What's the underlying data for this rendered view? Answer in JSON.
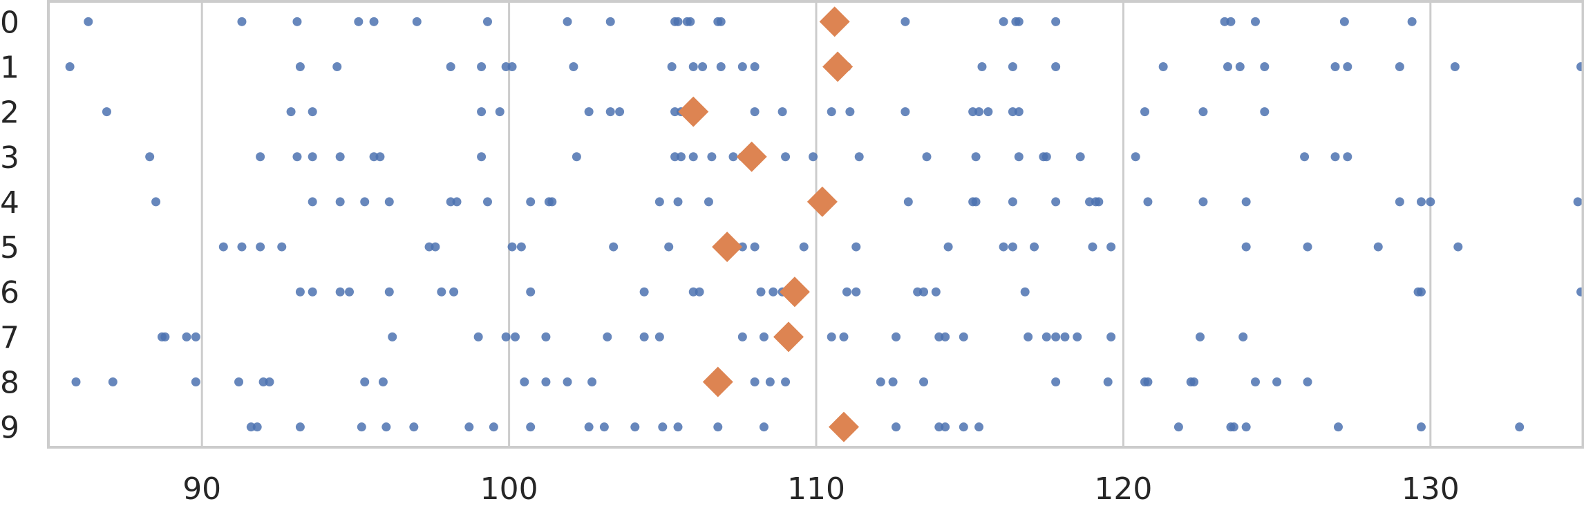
{
  "chart_data": {
    "type": "scatter",
    "title": "",
    "xlabel": "",
    "ylabel": "",
    "xlim": [
      85,
      135
    ],
    "ylim": [
      -0.45,
      9.45
    ],
    "x_ticks": [
      90,
      100,
      110,
      120,
      130
    ],
    "y_ticks": [
      0,
      1,
      2,
      3,
      4,
      5,
      6,
      7,
      8,
      9
    ],
    "grid": "vertical",
    "categories": [
      "0",
      "1",
      "2",
      "3",
      "4",
      "5",
      "6",
      "7",
      "8",
      "9"
    ],
    "colors": {
      "points": "#4c72b0",
      "means": "#dd8452",
      "grid": "#cccccc",
      "frame": "#cccccc"
    },
    "series": [
      {
        "points": [
          [
            0,
            86.3
          ],
          [
            0,
            91.3
          ],
          [
            0,
            93.1
          ],
          [
            0,
            95.1
          ],
          [
            0,
            95.6
          ],
          [
            0,
            97.0
          ],
          [
            0,
            99.3
          ],
          [
            0,
            101.9
          ],
          [
            0,
            103.3
          ],
          [
            0,
            105.4
          ],
          [
            0,
            105.5
          ],
          [
            0,
            105.8
          ],
          [
            0,
            105.9
          ],
          [
            0,
            106.8
          ],
          [
            0,
            106.9
          ],
          [
            0,
            112.9
          ],
          [
            0,
            116.1
          ],
          [
            0,
            116.5
          ],
          [
            0,
            116.6
          ],
          [
            0,
            117.8
          ],
          [
            0,
            123.3
          ],
          [
            0,
            123.5
          ],
          [
            0,
            124.3
          ],
          [
            0,
            127.2
          ],
          [
            0,
            129.4
          ],
          [
            1,
            85.7
          ],
          [
            1,
            93.2
          ],
          [
            1,
            94.4
          ],
          [
            1,
            98.1
          ],
          [
            1,
            99.1
          ],
          [
            1,
            99.9
          ],
          [
            1,
            100.1
          ],
          [
            1,
            102.1
          ],
          [
            1,
            105.3
          ],
          [
            1,
            106.0
          ],
          [
            1,
            106.3
          ],
          [
            1,
            106.9
          ],
          [
            1,
            107.6
          ],
          [
            1,
            108.0
          ],
          [
            1,
            111.0
          ],
          [
            1,
            115.4
          ],
          [
            1,
            116.4
          ],
          [
            1,
            117.8
          ],
          [
            1,
            121.3
          ],
          [
            1,
            123.4
          ],
          [
            1,
            123.8
          ],
          [
            1,
            124.6
          ],
          [
            1,
            126.9
          ],
          [
            1,
            127.3
          ],
          [
            1,
            129.0
          ],
          [
            1,
            130.8
          ],
          [
            1,
            134.9
          ],
          [
            2,
            86.9
          ],
          [
            2,
            92.9
          ],
          [
            2,
            93.6
          ],
          [
            2,
            99.1
          ],
          [
            2,
            99.7
          ],
          [
            2,
            102.6
          ],
          [
            2,
            103.3
          ],
          [
            2,
            103.6
          ],
          [
            2,
            105.4
          ],
          [
            2,
            105.6
          ],
          [
            2,
            108.0
          ],
          [
            2,
            108.9
          ],
          [
            2,
            110.5
          ],
          [
            2,
            111.1
          ],
          [
            2,
            112.9
          ],
          [
            2,
            115.1
          ],
          [
            2,
            115.3
          ],
          [
            2,
            115.6
          ],
          [
            2,
            116.4
          ],
          [
            2,
            116.6
          ],
          [
            2,
            120.7
          ],
          [
            2,
            122.6
          ],
          [
            2,
            124.6
          ],
          [
            3,
            88.3
          ],
          [
            3,
            91.9
          ],
          [
            3,
            93.1
          ],
          [
            3,
            93.6
          ],
          [
            3,
            94.5
          ],
          [
            3,
            95.6
          ],
          [
            3,
            95.8
          ],
          [
            3,
            99.1
          ],
          [
            3,
            102.2
          ],
          [
            3,
            105.4
          ],
          [
            3,
            105.6
          ],
          [
            3,
            106.0
          ],
          [
            3,
            106.6
          ],
          [
            3,
            107.3
          ],
          [
            3,
            107.6
          ],
          [
            3,
            109.0
          ],
          [
            3,
            109.9
          ],
          [
            3,
            111.4
          ],
          [
            3,
            113.6
          ],
          [
            3,
            115.2
          ],
          [
            3,
            116.6
          ],
          [
            3,
            117.4
          ],
          [
            3,
            117.5
          ],
          [
            3,
            118.6
          ],
          [
            3,
            120.4
          ],
          [
            3,
            125.9
          ],
          [
            3,
            126.9
          ],
          [
            3,
            127.3
          ],
          [
            4,
            88.5
          ],
          [
            4,
            93.6
          ],
          [
            4,
            94.5
          ],
          [
            4,
            95.3
          ],
          [
            4,
            96.1
          ],
          [
            4,
            98.1
          ],
          [
            4,
            98.3
          ],
          [
            4,
            99.3
          ],
          [
            4,
            100.7
          ],
          [
            4,
            101.3
          ],
          [
            4,
            101.4
          ],
          [
            4,
            104.9
          ],
          [
            4,
            105.5
          ],
          [
            4,
            106.5
          ],
          [
            4,
            113.0
          ],
          [
            4,
            115.1
          ],
          [
            4,
            115.2
          ],
          [
            4,
            116.4
          ],
          [
            4,
            117.8
          ],
          [
            4,
            118.9
          ],
          [
            4,
            119.1
          ],
          [
            4,
            119.2
          ],
          [
            4,
            120.8
          ],
          [
            4,
            122.6
          ],
          [
            4,
            124.0
          ],
          [
            4,
            129.0
          ],
          [
            4,
            129.7
          ],
          [
            4,
            130.0
          ],
          [
            4,
            134.8
          ],
          [
            5,
            90.7
          ],
          [
            5,
            91.3
          ],
          [
            5,
            91.9
          ],
          [
            5,
            92.6
          ],
          [
            5,
            97.4
          ],
          [
            5,
            97.6
          ],
          [
            5,
            100.1
          ],
          [
            5,
            100.4
          ],
          [
            5,
            103.4
          ],
          [
            5,
            105.2
          ],
          [
            5,
            107.6
          ],
          [
            5,
            108.0
          ],
          [
            5,
            109.6
          ],
          [
            5,
            111.3
          ],
          [
            5,
            114.3
          ],
          [
            5,
            116.1
          ],
          [
            5,
            116.4
          ],
          [
            5,
            117.1
          ],
          [
            5,
            119.0
          ],
          [
            5,
            119.6
          ],
          [
            5,
            124.0
          ],
          [
            5,
            126.0
          ],
          [
            5,
            128.3
          ],
          [
            5,
            130.9
          ],
          [
            6,
            93.2
          ],
          [
            6,
            93.6
          ],
          [
            6,
            94.5
          ],
          [
            6,
            94.8
          ],
          [
            6,
            96.1
          ],
          [
            6,
            97.8
          ],
          [
            6,
            98.2
          ],
          [
            6,
            100.7
          ],
          [
            6,
            104.4
          ],
          [
            6,
            106.0
          ],
          [
            6,
            106.2
          ],
          [
            6,
            108.2
          ],
          [
            6,
            108.6
          ],
          [
            6,
            108.9
          ],
          [
            6,
            109.0
          ],
          [
            6,
            111.0
          ],
          [
            6,
            111.3
          ],
          [
            6,
            113.3
          ],
          [
            6,
            113.5
          ],
          [
            6,
            113.9
          ],
          [
            6,
            116.8
          ],
          [
            6,
            129.6
          ],
          [
            6,
            129.7
          ],
          [
            6,
            134.9
          ],
          [
            7,
            88.7
          ],
          [
            7,
            88.8
          ],
          [
            7,
            89.5
          ],
          [
            7,
            89.8
          ],
          [
            7,
            96.2
          ],
          [
            7,
            99.0
          ],
          [
            7,
            99.9
          ],
          [
            7,
            100.2
          ],
          [
            7,
            101.2
          ],
          [
            7,
            103.2
          ],
          [
            7,
            104.4
          ],
          [
            7,
            104.9
          ],
          [
            7,
            107.6
          ],
          [
            7,
            108.3
          ],
          [
            7,
            110.5
          ],
          [
            7,
            110.9
          ],
          [
            7,
            112.6
          ],
          [
            7,
            114.0
          ],
          [
            7,
            114.2
          ],
          [
            7,
            114.8
          ],
          [
            7,
            116.9
          ],
          [
            7,
            117.5
          ],
          [
            7,
            117.8
          ],
          [
            7,
            118.1
          ],
          [
            7,
            118.5
          ],
          [
            7,
            119.6
          ],
          [
            7,
            122.5
          ],
          [
            7,
            123.9
          ],
          [
            8,
            85.9
          ],
          [
            8,
            87.1
          ],
          [
            8,
            89.8
          ],
          [
            8,
            91.2
          ],
          [
            8,
            92.0
          ],
          [
            8,
            92.2
          ],
          [
            8,
            95.3
          ],
          [
            8,
            95.9
          ],
          [
            8,
            100.5
          ],
          [
            8,
            101.2
          ],
          [
            8,
            101.9
          ],
          [
            8,
            102.7
          ],
          [
            8,
            108.0
          ],
          [
            8,
            108.5
          ],
          [
            8,
            109.0
          ],
          [
            8,
            112.1
          ],
          [
            8,
            112.5
          ],
          [
            8,
            113.5
          ],
          [
            8,
            117.8
          ],
          [
            8,
            119.5
          ],
          [
            8,
            120.7
          ],
          [
            8,
            120.8
          ],
          [
            8,
            122.2
          ],
          [
            8,
            122.3
          ],
          [
            8,
            124.3
          ],
          [
            8,
            125.0
          ],
          [
            8,
            126.0
          ],
          [
            9,
            91.6
          ],
          [
            9,
            91.8
          ],
          [
            9,
            93.2
          ],
          [
            9,
            95.2
          ],
          [
            9,
            96.0
          ],
          [
            9,
            96.9
          ],
          [
            9,
            98.7
          ],
          [
            9,
            99.5
          ],
          [
            9,
            100.7
          ],
          [
            9,
            102.6
          ],
          [
            9,
            103.1
          ],
          [
            9,
            104.1
          ],
          [
            9,
            105.0
          ],
          [
            9,
            105.5
          ],
          [
            9,
            106.8
          ],
          [
            9,
            108.3
          ],
          [
            9,
            112.6
          ],
          [
            9,
            114.0
          ],
          [
            9,
            114.2
          ],
          [
            9,
            114.8
          ],
          [
            9,
            115.3
          ],
          [
            9,
            121.8
          ],
          [
            9,
            123.5
          ],
          [
            9,
            123.6
          ],
          [
            9,
            124.0
          ],
          [
            9,
            127.0
          ],
          [
            9,
            129.7
          ],
          [
            9,
            132.9
          ]
        ]
      },
      {
        "points": [
          [
            0,
            110.6
          ],
          [
            1,
            110.7
          ],
          [
            2,
            106.0
          ],
          [
            3,
            107.9
          ],
          [
            4,
            110.2
          ],
          [
            5,
            107.1
          ],
          [
            6,
            109.3
          ],
          [
            7,
            109.1
          ],
          [
            8,
            106.8
          ],
          [
            9,
            110.9
          ]
        ]
      }
    ]
  }
}
